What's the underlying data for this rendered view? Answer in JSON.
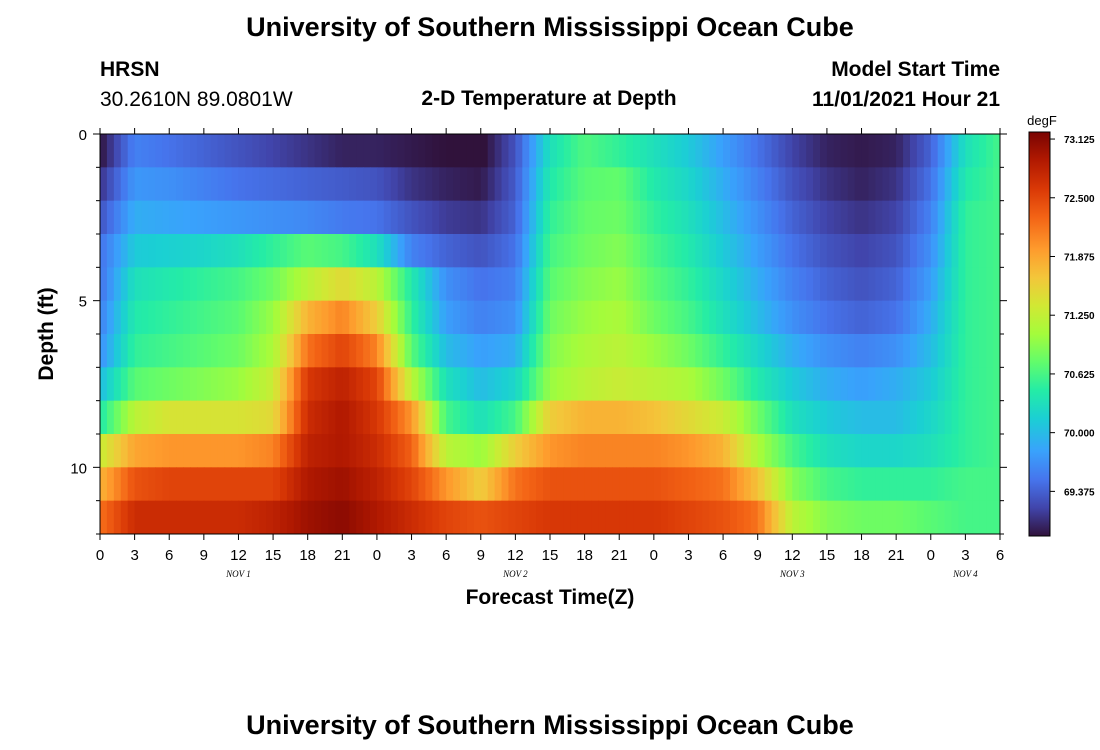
{
  "page_title": "University of Southern Mississippi Ocean Cube",
  "footer_title": "University of Southern Mississippi Ocean Cube",
  "station": {
    "name": "HRSN",
    "coords": "30.2610N  89.0801W"
  },
  "model": {
    "label": "Model Start Time",
    "start": "11/01/2021 Hour 21"
  },
  "chart_data": {
    "type": "heatmap",
    "title": "2-D Temperature at Depth",
    "xlabel": "Forecast Time(Z)",
    "ylabel": "Depth (ft)",
    "x_ticks": [
      "0",
      "3",
      "6",
      "9",
      "12",
      "15",
      "18",
      "21",
      "0",
      "3",
      "6",
      "9",
      "12",
      "15",
      "18",
      "21",
      "0",
      "3",
      "6",
      "9",
      "12",
      "15",
      "18",
      "21",
      "0",
      "3",
      "6"
    ],
    "x_tick_hours": [
      0,
      3,
      6,
      9,
      12,
      15,
      18,
      21,
      24,
      27,
      30,
      33,
      36,
      39,
      42,
      45,
      48,
      51,
      54,
      57,
      60,
      63,
      66,
      69,
      72,
      75,
      78
    ],
    "xlim_hours": [
      0,
      78
    ],
    "day_labels": [
      {
        "text": "NOV 1",
        "hour": 12
      },
      {
        "text": "NOV 2",
        "hour": 36
      },
      {
        "text": "NOV 3",
        "hour": 60
      },
      {
        "text": "NOV 4",
        "hour": 75
      }
    ],
    "y_ticks": [
      0,
      5,
      10
    ],
    "ylim": [
      0,
      12
    ],
    "y_minor_step": 1,
    "depth_layers_ft": [
      0.5,
      1.5,
      2.5,
      3.5,
      4.5,
      5.5,
      6.5,
      7.5,
      8.5,
      9.5,
      10.5,
      11.5
    ],
    "time_hours": [
      0,
      3,
      6,
      9,
      12,
      15,
      18,
      21,
      24,
      27,
      30,
      33,
      36,
      39,
      42,
      45,
      48,
      51,
      54,
      57,
      60,
      63,
      66,
      69,
      72,
      75,
      78
    ],
    "temperature_degF": [
      [
        68.9,
        69.6,
        69.5,
        69.4,
        69.3,
        69.2,
        69.1,
        69.0,
        69.0,
        68.95,
        68.9,
        68.85,
        69.3,
        70.3,
        70.65,
        70.5,
        70.3,
        70.1,
        69.8,
        69.5,
        69.2,
        69.0,
        68.95,
        69.0,
        69.4,
        70.3,
        70.6
      ],
      [
        69.1,
        69.75,
        69.7,
        69.6,
        69.5,
        69.45,
        69.4,
        69.35,
        69.3,
        69.1,
        69.0,
        68.95,
        69.35,
        70.4,
        70.7,
        70.75,
        70.4,
        70.2,
        69.9,
        69.6,
        69.3,
        69.1,
        69.0,
        69.1,
        69.5,
        70.4,
        70.6
      ],
      [
        69.3,
        69.9,
        69.85,
        69.8,
        69.75,
        69.7,
        69.65,
        69.55,
        69.5,
        69.3,
        69.15,
        69.1,
        69.4,
        70.5,
        70.75,
        70.8,
        70.5,
        70.3,
        70.0,
        69.7,
        69.4,
        69.2,
        69.1,
        69.2,
        69.6,
        70.5,
        70.6
      ],
      [
        69.5,
        70.1,
        70.15,
        70.2,
        70.3,
        70.5,
        70.7,
        70.6,
        70.3,
        69.6,
        69.4,
        69.3,
        69.5,
        70.6,
        70.8,
        70.9,
        70.6,
        70.4,
        70.1,
        69.8,
        69.5,
        69.3,
        69.2,
        69.3,
        69.7,
        70.5,
        70.6
      ],
      [
        69.5,
        70.3,
        70.4,
        70.5,
        70.6,
        70.8,
        71.2,
        71.5,
        71.2,
        70.4,
        69.7,
        69.5,
        69.6,
        70.7,
        70.9,
        71.0,
        70.7,
        70.5,
        70.2,
        69.9,
        69.6,
        69.4,
        69.3,
        69.4,
        69.8,
        70.5,
        70.6
      ],
      [
        69.6,
        70.4,
        70.5,
        70.6,
        70.7,
        71.0,
        71.8,
        72.1,
        71.6,
        70.5,
        69.8,
        69.6,
        69.7,
        70.8,
        71.0,
        71.1,
        70.8,
        70.6,
        70.3,
        70.0,
        69.7,
        69.5,
        69.4,
        69.5,
        69.9,
        70.5,
        70.6
      ],
      [
        69.7,
        70.5,
        70.6,
        70.7,
        70.8,
        71.1,
        72.2,
        72.5,
        72.1,
        70.7,
        70.0,
        69.8,
        69.9,
        70.9,
        71.1,
        71.2,
        71.0,
        70.8,
        70.5,
        70.2,
        69.9,
        69.7,
        69.6,
        69.7,
        70.0,
        70.5,
        70.6
      ],
      [
        70.0,
        70.7,
        70.8,
        70.9,
        71.0,
        71.3,
        72.6,
        72.8,
        72.5,
        71.2,
        70.3,
        70.0,
        70.2,
        71.0,
        71.2,
        71.3,
        71.2,
        71.1,
        70.8,
        70.4,
        70.1,
        69.9,
        69.8,
        69.9,
        70.1,
        70.5,
        70.6
      ],
      [
        70.4,
        71.2,
        71.4,
        71.4,
        71.4,
        71.5,
        72.7,
        72.9,
        72.6,
        72.0,
        70.6,
        70.3,
        70.6,
        71.6,
        71.8,
        71.8,
        71.7,
        71.5,
        71.3,
        70.8,
        70.3,
        70.1,
        70.0,
        70.0,
        70.2,
        70.5,
        70.6
      ],
      [
        71.3,
        71.9,
        72.0,
        72.0,
        72.0,
        72.1,
        72.8,
        72.9,
        72.7,
        72.3,
        71.2,
        71.0,
        71.6,
        72.0,
        72.1,
        72.1,
        72.1,
        72.0,
        71.8,
        71.1,
        70.6,
        70.3,
        70.2,
        70.2,
        70.3,
        70.5,
        70.6
      ],
      [
        71.8,
        72.4,
        72.5,
        72.5,
        72.5,
        72.5,
        72.9,
        73.0,
        72.8,
        72.5,
        72.0,
        71.6,
        72.2,
        72.4,
        72.4,
        72.4,
        72.4,
        72.3,
        72.2,
        71.7,
        70.9,
        70.6,
        70.5,
        70.5,
        70.5,
        70.6,
        70.6
      ],
      [
        72.2,
        72.7,
        72.7,
        72.7,
        72.7,
        72.8,
        73.0,
        73.1,
        72.9,
        72.7,
        72.5,
        72.4,
        72.5,
        72.6,
        72.6,
        72.6,
        72.6,
        72.5,
        72.4,
        72.2,
        71.2,
        70.9,
        70.8,
        70.8,
        70.7,
        70.6,
        70.6
      ]
    ],
    "colorbar": {
      "unit": "degF",
      "min": 68.9,
      "max": 73.2,
      "ticks": [
        "73.125",
        "72.500",
        "71.875",
        "71.250",
        "70.625",
        "70.000",
        "69.375"
      ],
      "tick_values": [
        73.125,
        72.5,
        71.875,
        71.25,
        70.625,
        70.0,
        69.375
      ]
    }
  }
}
